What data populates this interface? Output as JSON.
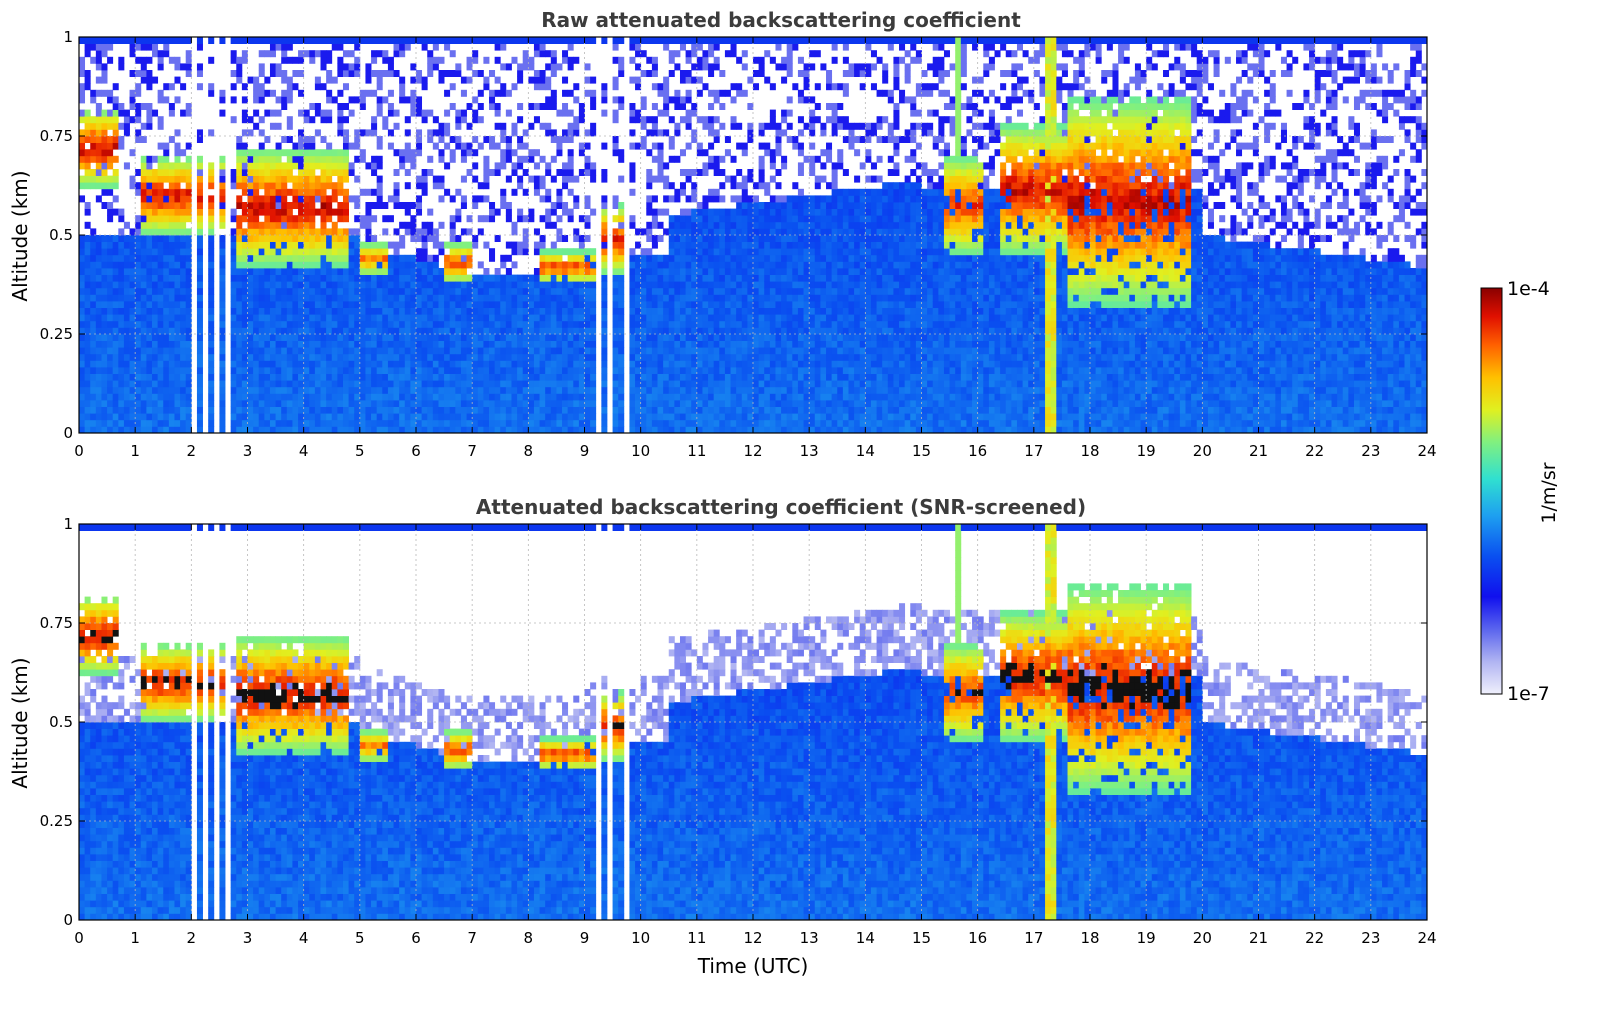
{
  "chart_data": [
    {
      "type": "heatmap",
      "title": "Raw attenuated backscattering coefficient",
      "xlabel": "",
      "ylabel": "Altitude (km)",
      "xlim": [
        0,
        24
      ],
      "ylim": [
        0,
        1
      ],
      "xticks": [
        "0",
        "1",
        "2",
        "3",
        "4",
        "5",
        "6",
        "7",
        "8",
        "9",
        "10",
        "11",
        "12",
        "13",
        "14",
        "15",
        "16",
        "17",
        "18",
        "19",
        "20",
        "21",
        "22",
        "23",
        "24"
      ],
      "yticks": [
        "0",
        "0.25",
        "0.5",
        "0.75",
        "1"
      ],
      "grid": true,
      "screened": false
    },
    {
      "type": "heatmap",
      "title": "Attenuated backscattering coefficient (SNR-screened)",
      "xlabel": "Time (UTC)",
      "ylabel": "Altitude (km)",
      "xlim": [
        0,
        24
      ],
      "ylim": [
        0,
        1
      ],
      "xticks": [
        "0",
        "1",
        "2",
        "3",
        "4",
        "5",
        "6",
        "7",
        "8",
        "9",
        "10",
        "11",
        "12",
        "13",
        "14",
        "15",
        "16",
        "17",
        "18",
        "19",
        "20",
        "21",
        "22",
        "23",
        "24"
      ],
      "yticks": [
        "0",
        "0.25",
        "0.5",
        "0.75",
        "1"
      ],
      "grid": true,
      "screened": true
    }
  ],
  "colorbar": {
    "label": "1/m/sr",
    "max_label": "1e-4",
    "min_label": "1e-7",
    "colormap": [
      "#e8e8fa",
      "#b0b4f2",
      "#5a64ee",
      "#1010ee",
      "#0a50f0",
      "#1ea0f0",
      "#30e0d0",
      "#80f080",
      "#e0f020",
      "#ffc000",
      "#ff6000",
      "#e01000",
      "#8a0000"
    ]
  }
}
